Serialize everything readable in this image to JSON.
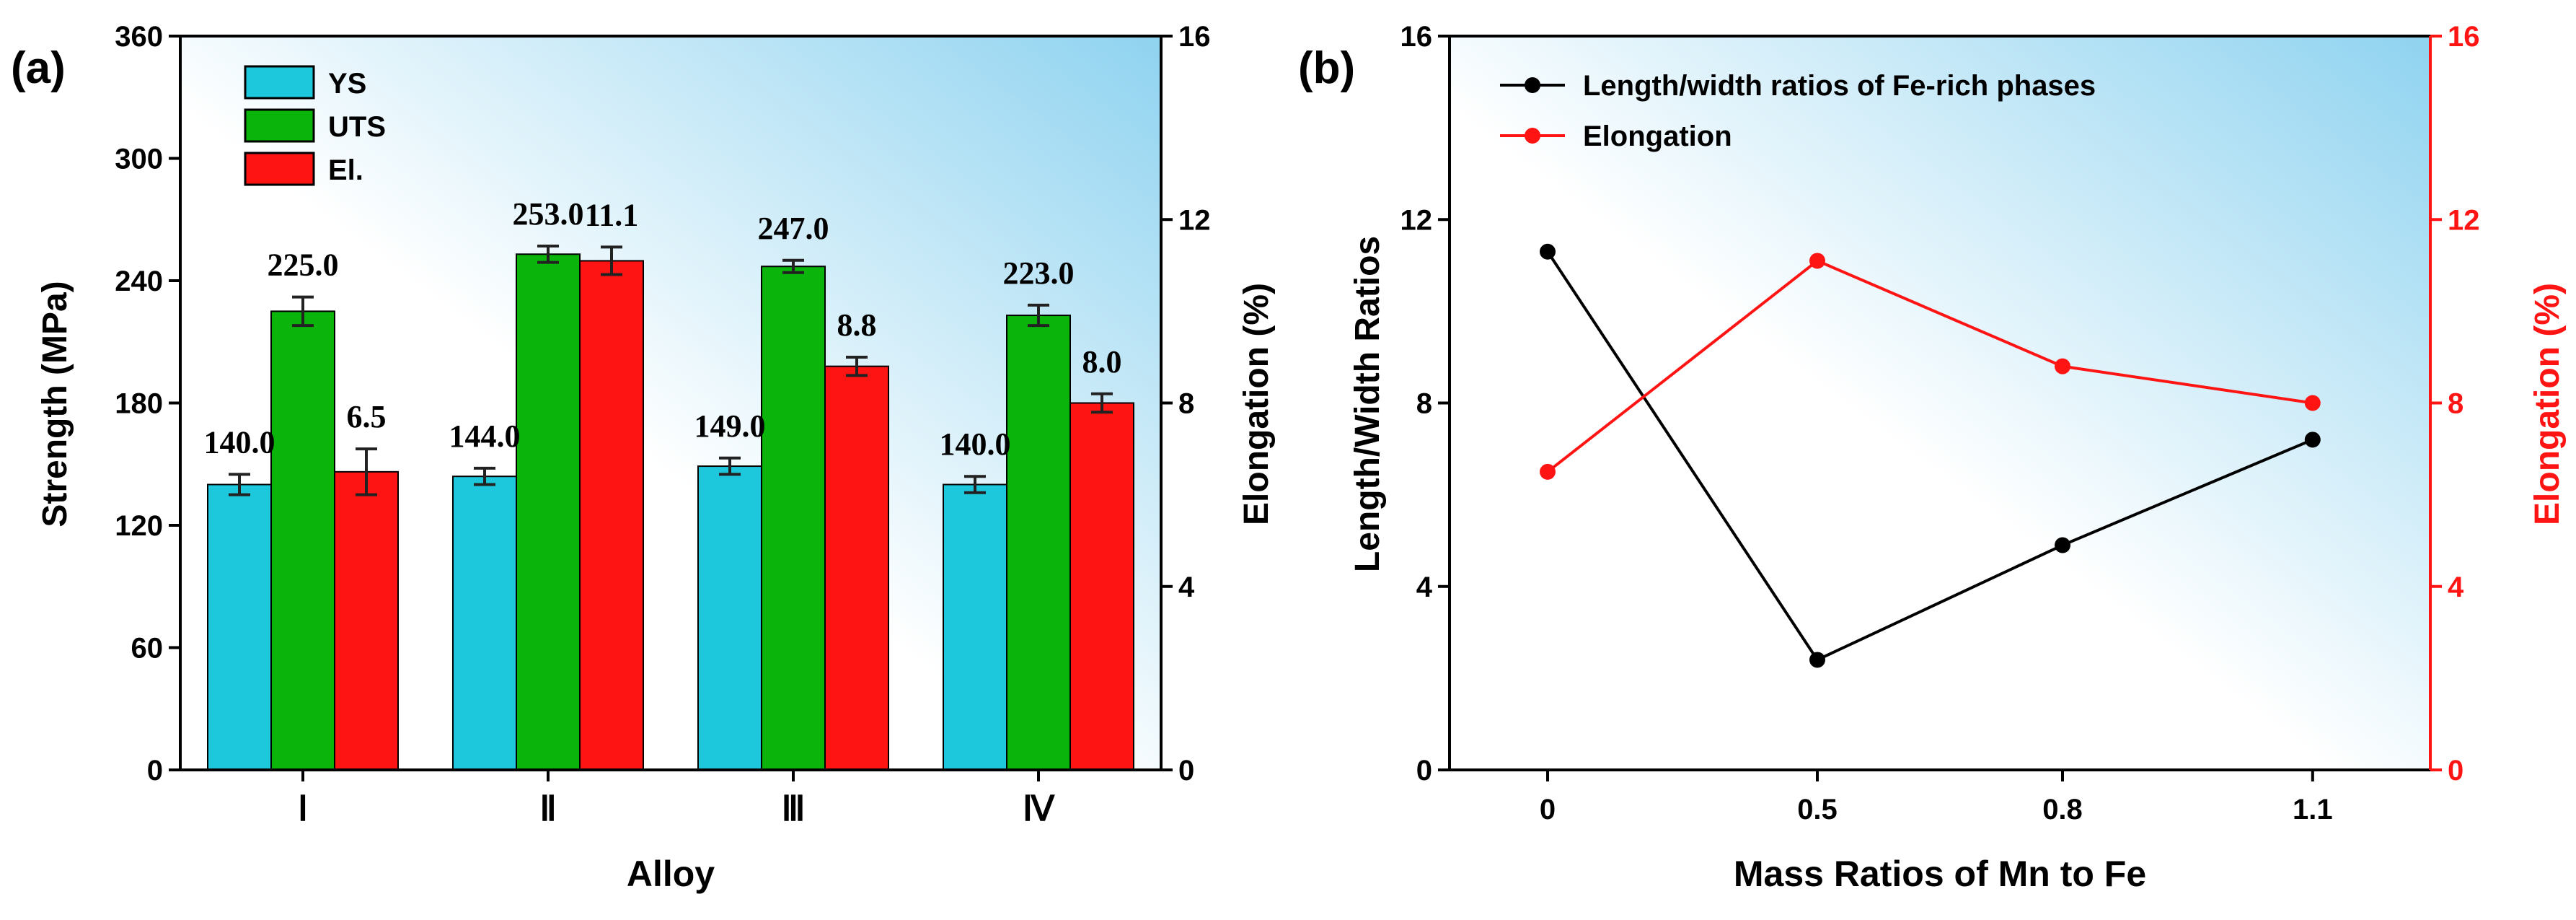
{
  "colors": {
    "ys": "#1ec8dc",
    "uts": "#0ab40a",
    "el": "#ff1414",
    "line_black": "#000000",
    "line_red": "#ff1414",
    "axis_red": "#ff1414",
    "bg_light": "#ffffff",
    "bg_blue": "#8fd3f0"
  },
  "chart_data": [
    {
      "panel_label": "(a)",
      "type": "bar",
      "xlabel": "Alloy",
      "ylabel": "Strength (MPa)",
      "y2label": "Elongation (%)",
      "categories": [
        "Ⅰ",
        "Ⅱ",
        "Ⅲ",
        "Ⅳ"
      ],
      "ylim": [
        0,
        360
      ],
      "yticks": [
        0,
        60,
        120,
        180,
        240,
        300,
        360
      ],
      "y2lim": [
        0,
        16
      ],
      "y2ticks": [
        0,
        4,
        8,
        12,
        16
      ],
      "legend": [
        "YS",
        "UTS",
        "El."
      ],
      "legend_position": "top-left",
      "series": [
        {
          "name": "YS",
          "axis": "left",
          "values": [
            140.0,
            144.0,
            149.0,
            140.0
          ],
          "errors": [
            5,
            4,
            4,
            4
          ],
          "labels": [
            "140.0",
            "144.0",
            "149.0",
            "140.0"
          ]
        },
        {
          "name": "UTS",
          "axis": "left",
          "values": [
            225.0,
            253.0,
            247.0,
            223.0
          ],
          "errors": [
            7,
            4,
            3,
            5
          ],
          "labels": [
            "225.0",
            "253.0",
            "247.0",
            "223.0"
          ]
        },
        {
          "name": "El.",
          "axis": "right",
          "values": [
            6.5,
            11.1,
            8.8,
            8.0
          ],
          "errors": [
            0.5,
            0.3,
            0.2,
            0.2
          ],
          "labels": [
            "6.5",
            "11.1",
            "8.8",
            "8.0"
          ]
        }
      ]
    },
    {
      "panel_label": "(b)",
      "type": "line",
      "xlabel": "Mass Ratios of Mn to Fe",
      "ylabel": "Length/Width Ratios",
      "y2label": "Elongation (%)",
      "x": [
        "0",
        "0.5",
        "0.8",
        "1.1"
      ],
      "ylim": [
        0,
        16
      ],
      "yticks": [
        0,
        4,
        8,
        12,
        16
      ],
      "y2lim": [
        0,
        16
      ],
      "y2ticks": [
        0,
        4,
        8,
        12,
        16
      ],
      "legend_position": "top-left",
      "series": [
        {
          "name": "Length/width ratios of Fe-rich phases",
          "axis": "left",
          "values": [
            11.3,
            2.4,
            4.9,
            7.2
          ]
        },
        {
          "name": "Elongation",
          "axis": "right",
          "values": [
            6.5,
            11.1,
            8.8,
            8.0
          ]
        }
      ]
    }
  ]
}
